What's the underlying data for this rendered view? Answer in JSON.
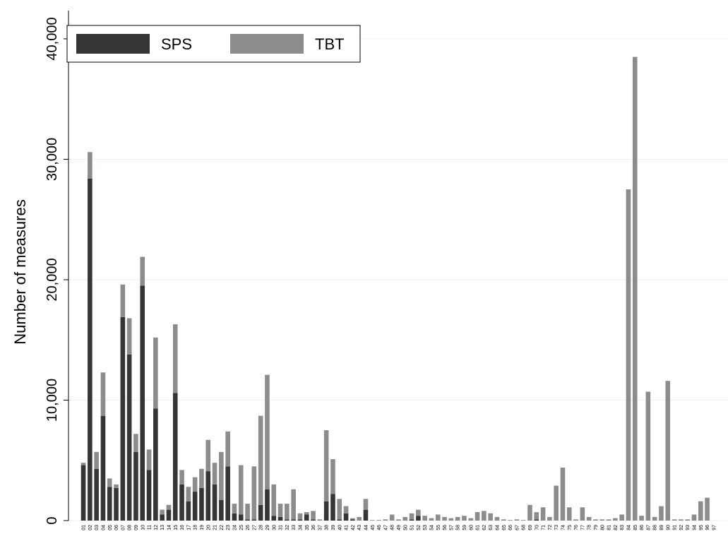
{
  "chart_data": {
    "type": "stacked_bar",
    "ylabel": "Number of measures",
    "categories": [
      "01",
      "02",
      "03",
      "04",
      "05",
      "06",
      "07",
      "08",
      "09",
      "10",
      "11",
      "12",
      "13",
      "14",
      "15",
      "16",
      "17",
      "18",
      "19",
      "20",
      "21",
      "22",
      "23",
      "24",
      "25",
      "26",
      "27",
      "28",
      "29",
      "30",
      "31",
      "32",
      "33",
      "34",
      "35",
      "36",
      "37",
      "38",
      "39",
      "40",
      "41",
      "42",
      "43",
      "44",
      "45",
      "46",
      "47",
      "48",
      "49",
      "50",
      "51",
      "52",
      "53",
      "54",
      "55",
      "56",
      "57",
      "58",
      "59",
      "60",
      "61",
      "62",
      "63",
      "64",
      "65",
      "66",
      "67",
      "68",
      "69",
      "70",
      "71",
      "72",
      "73",
      "74",
      "75",
      "76",
      "77",
      "78",
      "79",
      "80",
      "81",
      "82",
      "83",
      "84",
      "85",
      "86",
      "87",
      "88",
      "89",
      "90",
      "91",
      "92",
      "93",
      "94",
      "95",
      "96",
      "97"
    ],
    "series": [
      {
        "name": "SPS",
        "color": "#353535",
        "values": [
          4600,
          28400,
          4300,
          8700,
          2800,
          2700,
          16900,
          13800,
          5700,
          19500,
          4200,
          9300,
          500,
          900,
          10600,
          3000,
          1600,
          2400,
          2700,
          4100,
          3000,
          1700,
          4500,
          600,
          500,
          100,
          100,
          1300,
          2600,
          400,
          300,
          100,
          100,
          100,
          500,
          100,
          0,
          1600,
          2200,
          100,
          600,
          100,
          0,
          900,
          0,
          0,
          0,
          0,
          0,
          0,
          100,
          400,
          0,
          0,
          0,
          0,
          0,
          0,
          0,
          0,
          0,
          0,
          0,
          0,
          0,
          0,
          0,
          0,
          0,
          100,
          0,
          0,
          0,
          0,
          0,
          0,
          0,
          0,
          0,
          0,
          0,
          0,
          0,
          0,
          0,
          0,
          0,
          0,
          0,
          0,
          0,
          0,
          0,
          0,
          0,
          0,
          0
        ]
      },
      {
        "name": "TBT",
        "color": "#8c8c8c",
        "values": [
          200,
          2200,
          1400,
          3600,
          700,
          300,
          2700,
          3000,
          1500,
          2400,
          1700,
          5900,
          400,
          400,
          5700,
          1200,
          1200,
          1200,
          1600,
          2600,
          1800,
          4000,
          2900,
          800,
          4100,
          1300,
          4400,
          7400,
          9500,
          2600,
          1100,
          1300,
          2500,
          500,
          200,
          700,
          100,
          5900,
          2900,
          1700,
          600,
          100,
          300,
          900,
          50,
          50,
          100,
          500,
          100,
          300,
          500,
          500,
          400,
          200,
          500,
          300,
          200,
          300,
          400,
          200,
          700,
          800,
          600,
          300,
          100,
          50,
          100,
          50,
          1300,
          600,
          1100,
          300,
          2900,
          4400,
          1100,
          100,
          1100,
          300,
          100,
          100,
          100,
          200,
          500,
          27500,
          38500,
          400,
          10700,
          300,
          1200,
          11600,
          100,
          100,
          100,
          500,
          1600,
          1900,
          0
        ]
      }
    ],
    "ylim": [
      0,
      40000
    ],
    "yticks": [
      0,
      {
        "value": 10000,
        "label": "10,000"
      },
      {
        "value": 20000,
        "label": "20,000"
      },
      {
        "value": 30000,
        "label": "30,000"
      },
      {
        "value": 40000,
        "label": "40,000"
      }
    ],
    "grid": true,
    "legend": "top-left"
  }
}
